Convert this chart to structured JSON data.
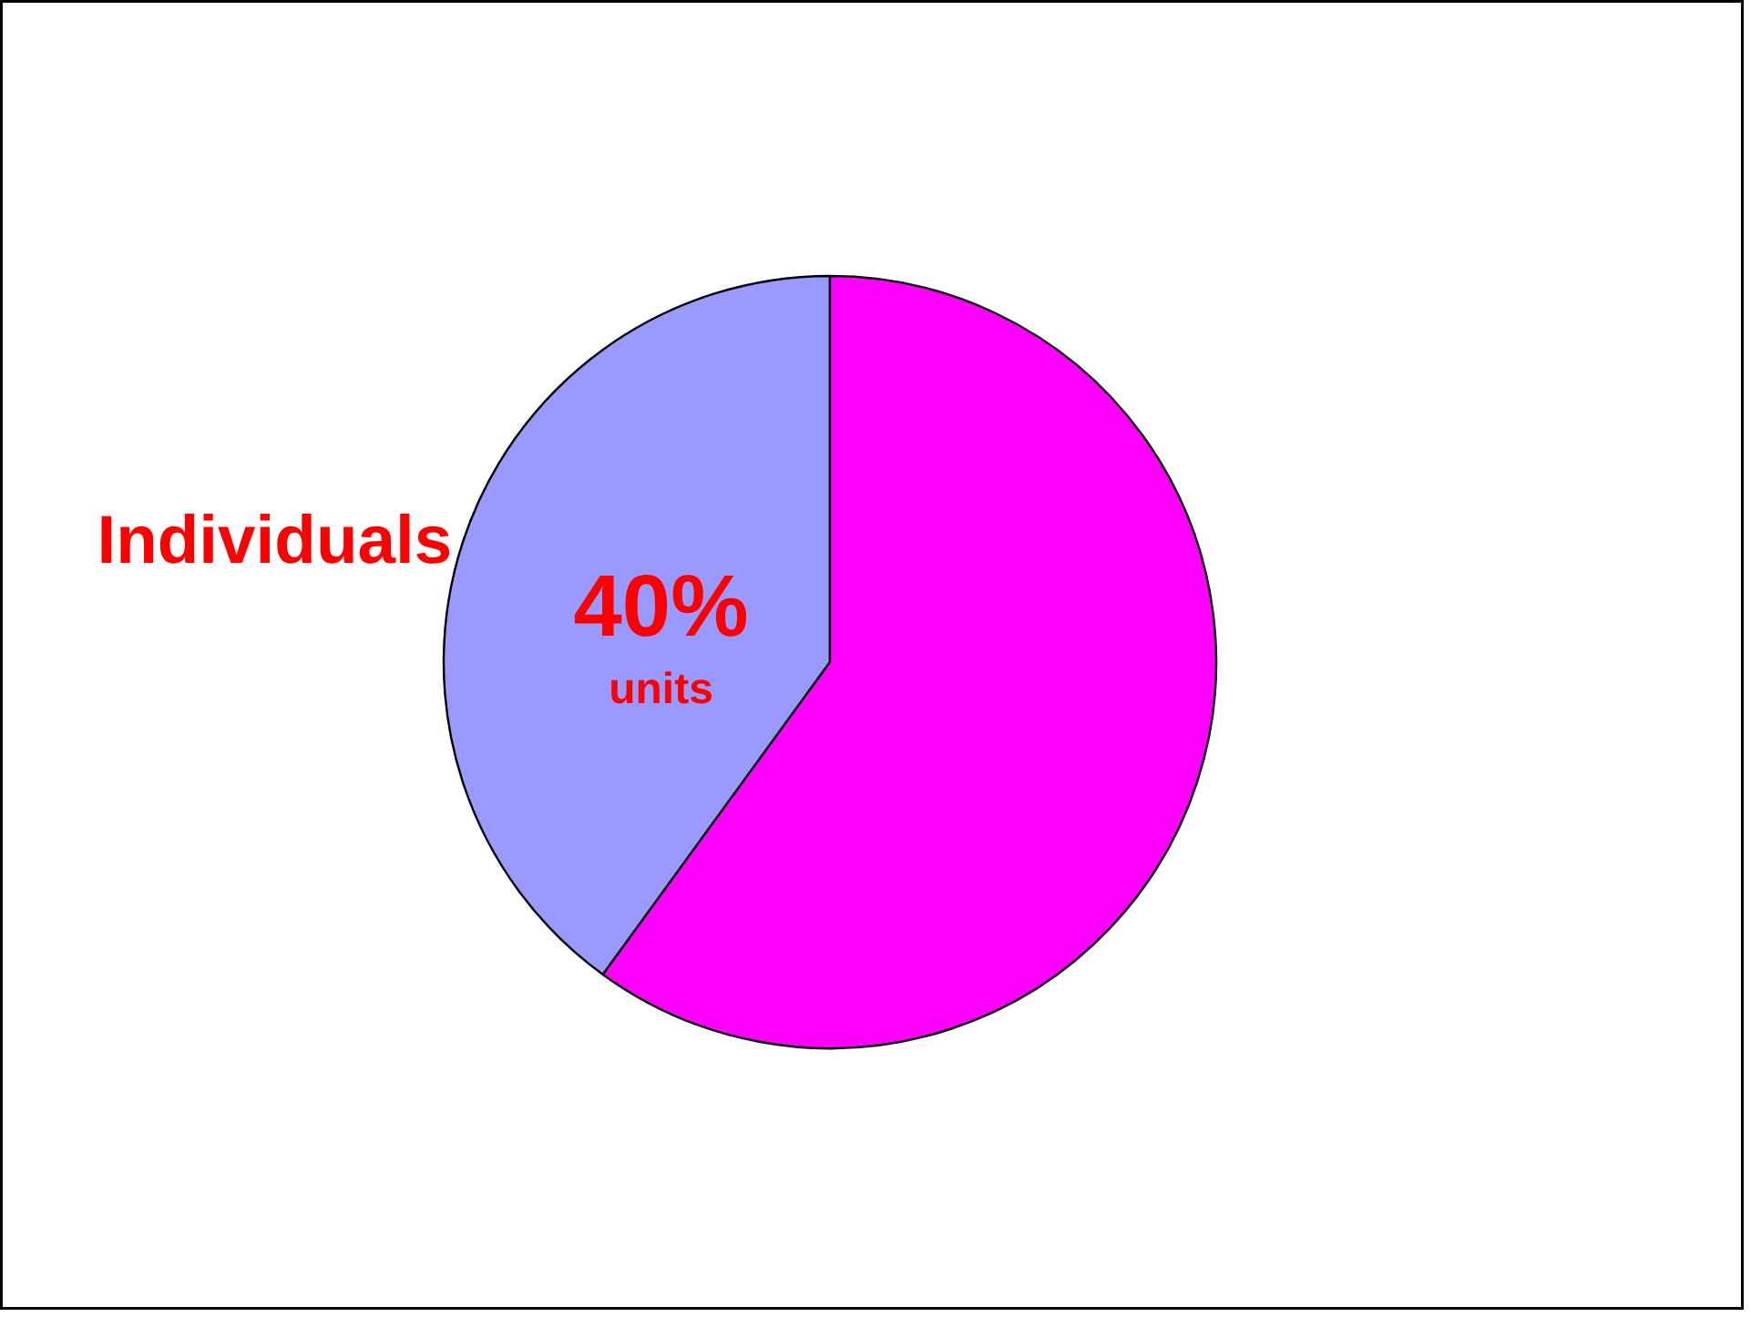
{
  "chart_data": {
    "type": "pie",
    "categories": [
      "Individuals",
      null
    ],
    "values": [
      40,
      60
    ],
    "colors": [
      "#9999ff",
      "#ff00ff"
    ],
    "value_labels": [
      "40%",
      null
    ],
    "annotations": [
      "units"
    ]
  }
}
